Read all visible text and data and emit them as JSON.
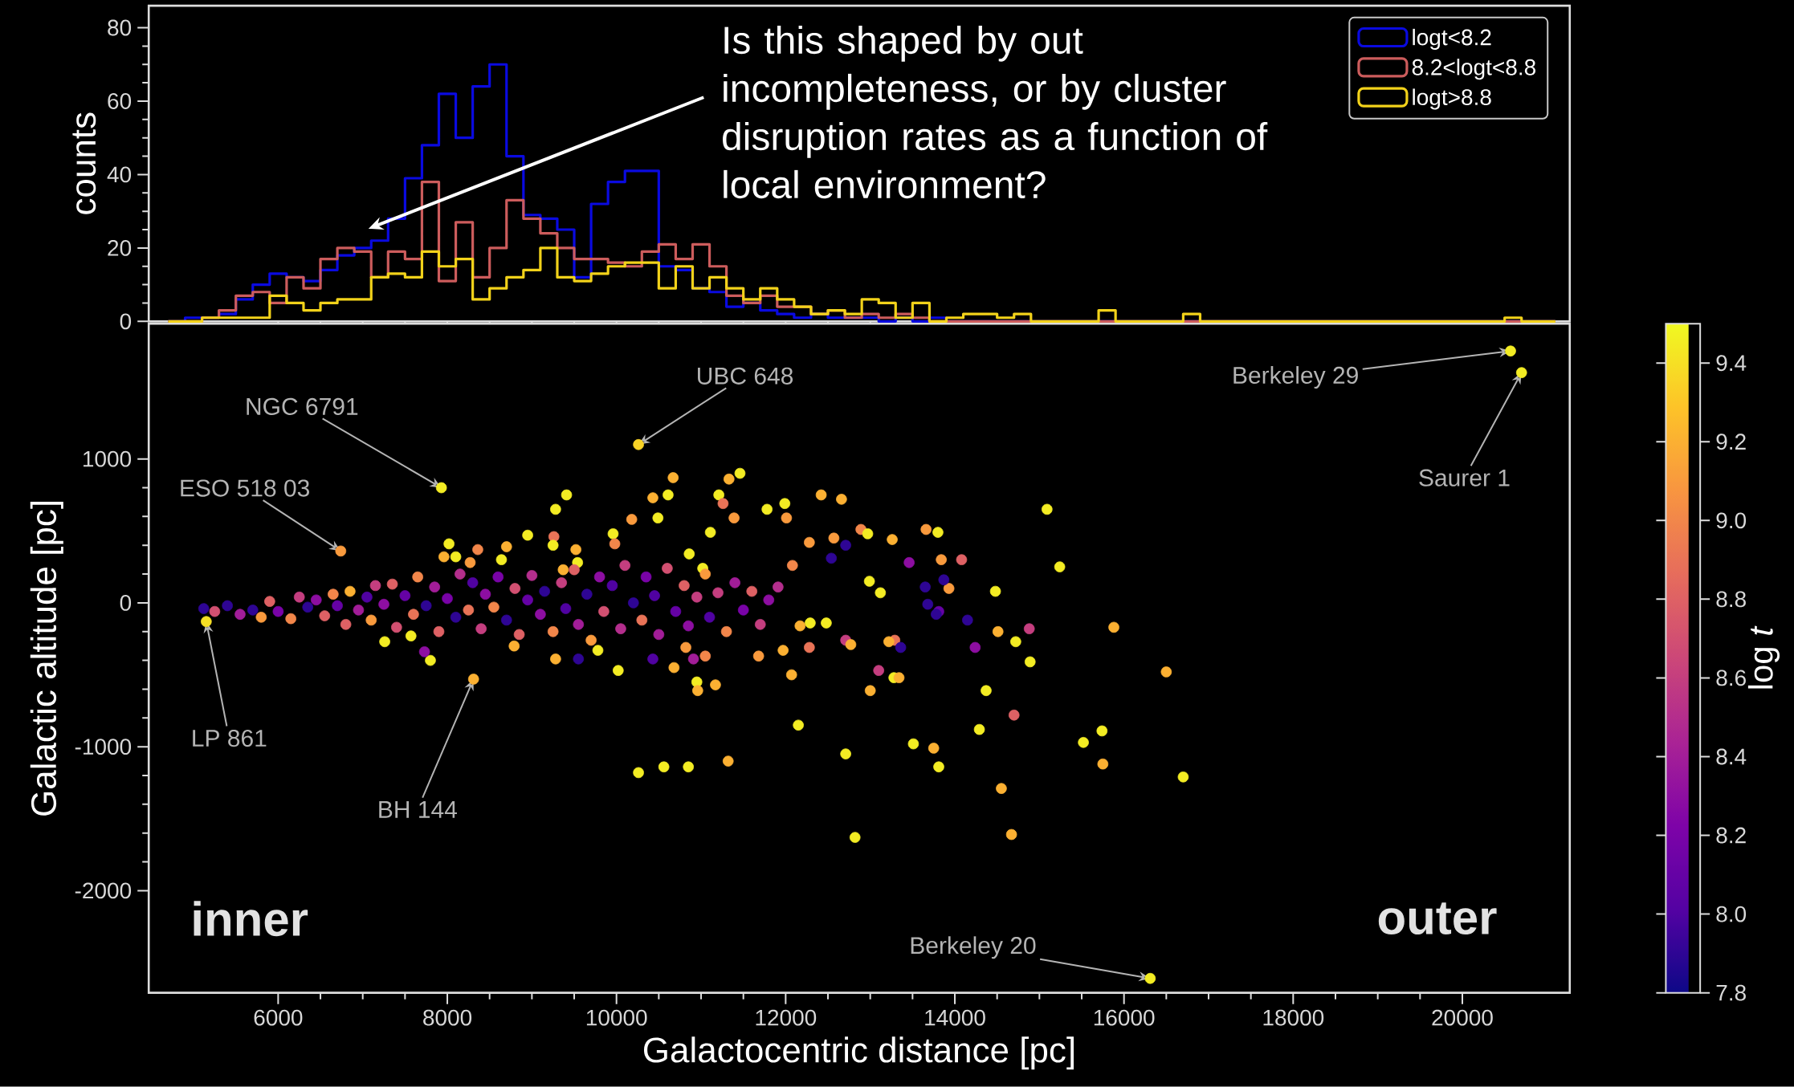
{
  "chart_data": [
    {
      "type": "histogram",
      "ylabel": "counts",
      "bins": [
        4700,
        4900,
        5100,
        5300,
        5500,
        5700,
        5900,
        6100,
        6300,
        6500,
        6700,
        6900,
        7100,
        7300,
        7500,
        7700,
        7900,
        8100,
        8300,
        8500,
        8700,
        8900,
        9100,
        9300,
        9500,
        9700,
        9900,
        10100,
        10300,
        10500,
        10700,
        10900,
        11100,
        11300,
        11500,
        11700,
        11900,
        12100,
        12300,
        12500,
        12700,
        12900,
        13100,
        13300,
        13500,
        13700,
        13900,
        14100,
        14300,
        14500,
        14700,
        14900,
        15100,
        15300,
        15500,
        15700,
        15900,
        16100,
        16300,
        16500,
        16700,
        16900,
        17100,
        17300,
        17500,
        17700,
        17900,
        18100,
        18300,
        18500,
        18700,
        18900,
        19100,
        19300,
        19500,
        19700,
        19900,
        20100,
        20300,
        20500,
        20700,
        20900,
        21100
      ],
      "series": [
        {
          "name": "logt<8.2",
          "color": "#0a0ae0",
          "values": [
            0,
            1,
            1,
            2,
            6,
            10,
            13,
            12,
            11,
            14,
            18,
            20,
            22,
            28,
            39,
            48,
            62,
            50,
            64,
            70,
            45,
            29,
            28,
            25,
            12,
            32,
            38,
            41,
            41,
            15,
            14,
            9,
            8,
            4,
            5,
            3,
            2,
            1,
            2,
            1,
            1,
            1,
            0,
            1,
            0,
            1,
            0,
            0,
            0,
            0,
            0,
            0,
            0,
            0,
            0,
            0,
            0,
            0,
            0,
            0,
            0,
            0,
            0,
            0,
            0,
            0,
            0,
            0,
            0,
            0,
            0,
            0,
            0,
            0,
            0,
            0,
            0,
            0,
            0,
            0,
            0,
            0
          ]
        },
        {
          "name": "8.2<logt<8.8",
          "color": "#cc5c5c",
          "values": [
            0,
            0,
            1,
            3,
            7,
            8,
            5,
            12,
            9,
            17,
            20,
            19,
            12,
            19,
            17,
            38,
            11,
            27,
            12,
            20,
            33,
            28,
            24,
            20,
            17,
            17,
            16,
            15,
            19,
            21,
            17,
            21,
            15,
            7,
            5,
            7,
            4,
            4,
            2,
            3,
            1,
            2,
            1,
            2,
            1,
            0,
            0,
            0,
            0,
            0,
            0,
            0,
            0,
            0,
            0,
            0,
            0,
            0,
            0,
            0,
            0,
            0,
            0,
            0,
            0,
            0,
            0,
            0,
            0,
            0,
            0,
            0,
            0,
            0,
            0,
            0,
            0,
            0,
            0,
            0,
            0,
            0
          ]
        },
        {
          "name": "logt>8.8",
          "color": "#f2d21a",
          "values": [
            0,
            0,
            1,
            1,
            1,
            1,
            7,
            5,
            3,
            5,
            6,
            6,
            12,
            13,
            12,
            19,
            15,
            17,
            6,
            9,
            12,
            14,
            20,
            12,
            11,
            13,
            15,
            16,
            16,
            9,
            15,
            9,
            12,
            9,
            6,
            9,
            6,
            4,
            2,
            3,
            2,
            6,
            5,
            1,
            5,
            0,
            1,
            2,
            2,
            1,
            2,
            0,
            0,
            0,
            0,
            3,
            0,
            0,
            0,
            0,
            2,
            0,
            0,
            0,
            0,
            0,
            0,
            0,
            0,
            0,
            0,
            0,
            0,
            0,
            0,
            0,
            0,
            0,
            0,
            1,
            0,
            0
          ]
        }
      ],
      "xlim": [
        4470,
        21270
      ],
      "ylim": [
        0,
        86
      ],
      "xticks": [
        6000,
        8000,
        10000,
        12000,
        14000,
        16000,
        18000,
        20000
      ],
      "yticks": [
        0,
        20,
        40,
        60,
        80
      ],
      "tick_labels": "y",
      "legend": "top right",
      "annotations": [
        "Is this shaped by out incompleteness, or by cluster disruption rates as a function of local environment?"
      ]
    },
    {
      "type": "scatter",
      "marker": "circle",
      "xlabel": "Galactocentric distance [pc]",
      "ylabel": "Galactic altitude [pc]",
      "clabel": "log *t*",
      "x": [
        5150,
        6740,
        7930,
        8310,
        10260,
        16310,
        20570,
        20700,
        9410,
        9280,
        8950,
        9260,
        9250,
        9960,
        10180,
        10430,
        10610,
        10490,
        10670,
        11330,
        11460,
        11210,
        11260,
        11110,
        8020,
        7960,
        8100,
        8360,
        8700,
        8640,
        8270,
        9520,
        9540,
        9370,
        9980,
        10860,
        11020,
        11390,
        7570,
        7260,
        7800,
        7730,
        8790,
        9280,
        10020,
        9550,
        9780,
        10680,
        10430,
        10950,
        10960,
        11170,
        11050,
        10910,
        10820,
        5120,
        5250,
        5400,
        5550,
        5700,
        5800,
        5900,
        6000,
        6150,
        6250,
        6350,
        6450,
        6550,
        6650,
        6700,
        6800,
        6850,
        6950,
        7050,
        7100,
        7150,
        7250,
        7350,
        7400,
        7500,
        7600,
        7650,
        7750,
        7850,
        7900,
        8000,
        8100,
        8150,
        8250,
        8300,
        8400,
        8450,
        8550,
        8600,
        8700,
        8800,
        8850,
        8950,
        9000,
        9100,
        9150,
        9250,
        9350,
        9400,
        9500,
        9550,
        9650,
        9700,
        9800,
        9850,
        9950,
        10050,
        10100,
        10200,
        10300,
        10350,
        10450,
        10500,
        10600,
        10700,
        10800,
        10850,
        10950,
        11050,
        11100,
        11200,
        11300,
        11400,
        11500,
        11600,
        11700,
        11800,
        12420,
        12660,
        11990,
        11780,
        12010,
        12280,
        12570,
        12890,
        12970,
        13260,
        13660,
        13800,
        15090,
        15240,
        12710,
        12540,
        13460,
        13840,
        14080,
        12990,
        13120,
        13650,
        13930,
        13870,
        14480,
        13680,
        13810,
        14150,
        14880,
        14240,
        14510,
        14720,
        14890,
        15880,
        16500,
        14370,
        14700,
        13780,
        13290,
        13220,
        13100,
        13280,
        13340,
        13000,
        12710,
        12770,
        13360,
        12070,
        12480,
        12290,
        12170,
        11970,
        12280,
        11680,
        11910,
        12080,
        16700,
        15740,
        15520,
        15750,
        14550,
        14670,
        14290,
        13750,
        13810,
        13510,
        12820,
        12710,
        10260,
        10560,
        10850,
        11320,
        12150
      ],
      "values": [
        -130,
        360,
        800,
        -530,
        1100,
        -2610,
        1750,
        1600,
        750,
        650,
        470,
        460,
        400,
        480,
        580,
        730,
        750,
        590,
        870,
        860,
        900,
        750,
        690,
        490,
        410,
        320,
        320,
        370,
        390,
        300,
        280,
        370,
        280,
        230,
        410,
        340,
        240,
        590,
        -230,
        -270,
        -400,
        -340,
        -300,
        -390,
        -470,
        -390,
        -330,
        -450,
        -390,
        -550,
        -610,
        -570,
        -370,
        -390,
        -310,
        -40,
        -60,
        -20,
        -80,
        -50,
        -100,
        10,
        -60,
        -110,
        40,
        -30,
        20,
        -90,
        60,
        -20,
        -150,
        80,
        -50,
        40,
        -120,
        120,
        -10,
        130,
        -170,
        50,
        -80,
        180,
        -20,
        110,
        -200,
        30,
        -100,
        200,
        -50,
        140,
        -180,
        60,
        -30,
        180,
        -120,
        100,
        -220,
        20,
        190,
        -80,
        80,
        -200,
        140,
        -40,
        230,
        -150,
        60,
        -260,
        180,
        -60,
        120,
        -180,
        260,
        0,
        -120,
        180,
        50,
        -220,
        240,
        -60,
        120,
        -160,
        40,
        200,
        -100,
        70,
        -200,
        140,
        -50,
        80,
        -150,
        20,
        750,
        720,
        690,
        650,
        590,
        420,
        450,
        510,
        480,
        440,
        510,
        490,
        650,
        250,
        400,
        310,
        280,
        300,
        300,
        150,
        70,
        110,
        100,
        160,
        80,
        -10,
        -60,
        -120,
        -180,
        -310,
        -200,
        -270,
        -410,
        -170,
        -480,
        -610,
        -780,
        -80,
        -260,
        -270,
        -470,
        -520,
        -520,
        -610,
        -260,
        -290,
        -310,
        -500,
        -140,
        -140,
        -160,
        -330,
        -310,
        -370,
        110,
        260,
        -1210,
        -890,
        -970,
        -1120,
        -1290,
        -1610,
        -880,
        -1010,
        -1140,
        -980,
        -1630,
        -1050,
        -1180,
        -1140,
        -1140,
        -1100,
        -850
      ],
      "cvalues": [
        9.4,
        9.1,
        9.45,
        9.2,
        9.35,
        9.45,
        9.45,
        9.45,
        9.45,
        9.45,
        9.45,
        8.9,
        9.45,
        9.45,
        9.1,
        9.2,
        9.45,
        9.45,
        9.2,
        9.2,
        9.45,
        9.45,
        8.9,
        9.45,
        9.45,
        9.2,
        9.45,
        9.0,
        9.2,
        9.45,
        9.1,
        9.2,
        9.45,
        9.2,
        9.0,
        9.45,
        9.45,
        9.1,
        9.45,
        9.45,
        9.45,
        8.3,
        9.2,
        9.2,
        9.45,
        7.9,
        9.45,
        9.2,
        8.0,
        9.45,
        9.2,
        9.2,
        9.0,
        8.4,
        9.1,
        7.9,
        8.7,
        7.9,
        8.4,
        7.9,
        9.1,
        8.8,
        8.2,
        9.0,
        8.6,
        7.9,
        8.3,
        8.8,
        9.0,
        8.1,
        8.8,
        9.2,
        8.4,
        8.0,
        9.1,
        8.6,
        8.3,
        8.8,
        8.7,
        8.1,
        8.9,
        9.0,
        7.9,
        8.4,
        8.8,
        8.2,
        7.9,
        8.5,
        8.9,
        8.0,
        8.6,
        8.3,
        9.0,
        8.2,
        7.9,
        8.7,
        8.8,
        8.1,
        8.5,
        8.3,
        7.9,
        9.0,
        8.6,
        8.0,
        8.8,
        8.4,
        7.9,
        9.1,
        8.3,
        8.7,
        8.0,
        8.5,
        8.6,
        7.9,
        8.9,
        8.2,
        8.0,
        8.4,
        8.7,
        8.1,
        8.8,
        8.3,
        8.6,
        9.1,
        8.0,
        8.6,
        9.0,
        8.4,
        8.2,
        8.8,
        8.6,
        8.3,
        9.2,
        9.2,
        9.45,
        9.45,
        9.1,
        9.1,
        9.1,
        9.0,
        9.45,
        9.2,
        9.1,
        9.45,
        9.45,
        9.45,
        7.9,
        7.9,
        8.3,
        9.1,
        8.8,
        9.45,
        9.45,
        7.9,
        9.1,
        7.9,
        9.45,
        7.9,
        8.1,
        7.9,
        8.6,
        8.3,
        9.2,
        9.45,
        9.45,
        9.2,
        9.2,
        9.45,
        8.8,
        7.9,
        8.9,
        9.2,
        8.6,
        9.45,
        9.2,
        9.2,
        8.6,
        9.2,
        7.9,
        9.2,
        9.45,
        9.45,
        9.2,
        9.2,
        8.9,
        9.1,
        8.5,
        9.0,
        9.45,
        9.45,
        9.45,
        9.2,
        9.2,
        9.2,
        9.45,
        9.2,
        9.45,
        9.45,
        9.45,
        9.45,
        9.45,
        9.45,
        9.45,
        9.2,
        9.45
      ],
      "clim": [
        7.8,
        9.5
      ],
      "cticks": [
        7.8,
        {
          "value": 8,
          "label": "8.0"
        },
        8.2,
        8.4,
        8.6,
        8.8,
        {
          "value": 9,
          "label": "9.0"
        },
        9.2,
        9.4
      ],
      "xlim": [
        4470,
        21270
      ],
      "ylim": [
        -2710,
        1940
      ],
      "xticks": [
        6000,
        8000,
        10000,
        12000,
        14000,
        16000,
        18000,
        20000
      ],
      "yticks": [
        -2000,
        -1000,
        0,
        1000
      ],
      "annotations": [
        {
          "text": "NGC 6791",
          "x": 7930,
          "y": 800
        },
        {
          "text": "ESO 518 03",
          "x": 6740,
          "y": 360
        },
        {
          "text": "UBC 648",
          "x": 10260,
          "y": 1100
        },
        {
          "text": "Berkeley 29",
          "x": 20570,
          "y": 1750
        },
        {
          "text": "Saurer 1",
          "x": 20700,
          "y": 1600
        },
        {
          "text": "LP 861",
          "x": 5150,
          "y": -130
        },
        {
          "text": "BH 144",
          "x": 8310,
          "y": -530
        },
        {
          "text": "Berkeley 20",
          "x": 16310,
          "y": -2610
        },
        "inner",
        "outer"
      ]
    }
  ]
}
